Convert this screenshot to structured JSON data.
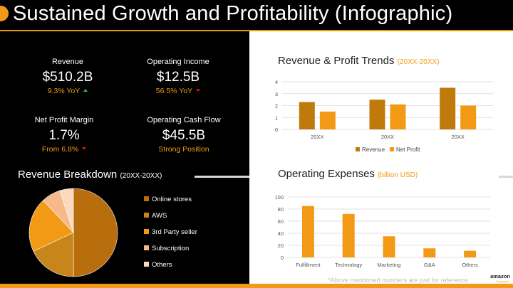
{
  "title": "Sustained Growth and Profitability (Infographic)",
  "kpis": [
    {
      "label": "Revenue",
      "value": "$510.2B",
      "sub": "9.3% YoY",
      "trend": "up"
    },
    {
      "label": "Operating Income",
      "value": "$12.5B",
      "sub": "56.5% YoY",
      "trend": "down"
    },
    {
      "label": "Net Profit Margin",
      "value": "1.7%",
      "sub": "From 6.8%",
      "trend": "down"
    },
    {
      "label": "Operating Cash Flow",
      "value": "$45.5B",
      "sub": "Strong Position",
      "trend": "none"
    }
  ],
  "revenue_breakdown": {
    "title": "Revenue Breakdown",
    "title_suffix": "(20XX-20XX)",
    "legend": [
      "Online stores",
      "AWS",
      "3rd Party seller",
      "Subscription",
      "Others"
    ],
    "colors": [
      "#b86e0c",
      "#c8851a",
      "#f29a16",
      "#f5b98a",
      "#fbd9bf"
    ]
  },
  "trends": {
    "title": "Revenue & Profit Trends",
    "title_suffix": "(20XX-20XX)"
  },
  "opex": {
    "title": "Operating Expenses",
    "title_suffix": "(billion USD)"
  },
  "chart_data": [
    {
      "type": "pie",
      "labels": [
        "Online stores",
        "AWS",
        "3rd Party seller",
        "Subscription",
        "Others"
      ],
      "values": [
        50,
        18,
        20,
        7,
        5
      ]
    },
    {
      "type": "bar",
      "categories": [
        "20XX",
        "20XX",
        "20XX"
      ],
      "series": [
        {
          "name": "Revenue",
          "values": [
            2.3,
            2.5,
            3.5
          ],
          "color": "#c07a0c"
        },
        {
          "name": "Net Profit",
          "values": [
            1.5,
            2.1,
            2.0
          ],
          "color": "#f29a16"
        }
      ],
      "yticks": [
        0,
        1,
        2,
        3,
        4
      ],
      "ylim": [
        0,
        4
      ],
      "grid": true,
      "legend": "bottom"
    },
    {
      "type": "bar",
      "categories": [
        "Fulfillment",
        "Technology",
        "Marketing",
        "G&A",
        "Others"
      ],
      "values": [
        85,
        72,
        35,
        15,
        11
      ],
      "yticks": [
        0,
        20,
        40,
        60,
        80,
        100
      ],
      "ylim": [
        0,
        100
      ],
      "grid": true,
      "color": "#f29a16"
    }
  ],
  "disclaimer": "*Above mentioned numbers are just for reference.",
  "brand": "amazon"
}
